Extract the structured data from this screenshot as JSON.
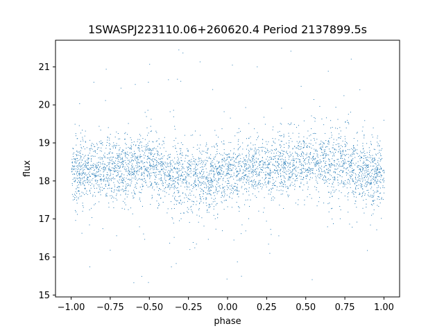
{
  "chart_data": {
    "type": "scatter",
    "title": "1SWASPJ223110.06+260620.4 Period 2137899.5s",
    "xlabel": "phase",
    "ylabel": "flux",
    "xlim": [
      -1.1,
      1.1
    ],
    "ylim": [
      14.95,
      21.7
    ],
    "xticks": [
      -1.0,
      -0.75,
      -0.5,
      -0.25,
      0.0,
      0.25,
      0.5,
      0.75,
      1.0
    ],
    "xtick_labels": [
      "−1.00",
      "−0.75",
      "−0.50",
      "−0.25",
      "0.00",
      "0.25",
      "0.50",
      "0.75",
      "1.00"
    ],
    "yticks": [
      15,
      16,
      17,
      18,
      19,
      20,
      21
    ],
    "ytick_labels": [
      "15",
      "16",
      "17",
      "18",
      "19",
      "20",
      "21"
    ],
    "grid": false,
    "legend": "none",
    "color": "#1f77b4",
    "series": [
      {
        "x_range": [
          -1.0,
          1.0
        ],
        "flux_band_center": [
          [
            -1.0,
            18.2
          ],
          [
            -0.75,
            18.35
          ],
          [
            -0.5,
            18.4
          ],
          [
            -0.3,
            18.1
          ],
          [
            -0.25,
            18.05
          ],
          [
            0.0,
            18.15
          ],
          [
            0.25,
            18.4
          ],
          [
            0.5,
            18.45
          ],
          [
            0.75,
            18.4
          ],
          [
            1.0,
            18.1
          ]
        ],
        "typical_half_width": 0.9,
        "outlier_extent": [
          15.25,
          21.55
        ]
      }
    ]
  }
}
